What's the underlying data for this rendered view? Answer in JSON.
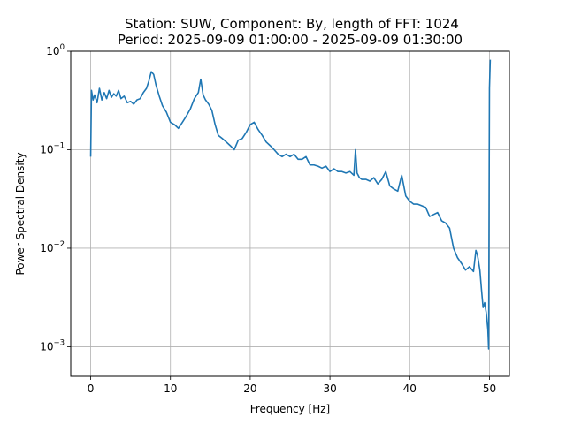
{
  "chart_data": {
    "type": "line",
    "title_line1": "Station: SUW, Component: By, length of FFT: 1024",
    "title_line2": "Period: 2025-09-09 01:00:00 - 2025-09-09 01:30:00",
    "xlabel": "Frequency [Hz]",
    "ylabel": "Power Spectral Density",
    "xlim": [
      -2.5,
      52.5
    ],
    "ylim": [
      0.0005,
      1
    ],
    "yscale": "log",
    "grid": true,
    "line_color": "#1f77b4",
    "x_ticks": [
      {
        "value": 0,
        "label": "0"
      },
      {
        "value": 10,
        "label": "10"
      },
      {
        "value": 20,
        "label": "20"
      },
      {
        "value": 30,
        "label": "30"
      },
      {
        "value": 40,
        "label": "40"
      },
      {
        "value": 50,
        "label": "50"
      }
    ],
    "y_ticks": [
      {
        "value": 0.001,
        "base": "10",
        "exp": "−3"
      },
      {
        "value": 0.01,
        "base": "10",
        "exp": "−2"
      },
      {
        "value": 0.1,
        "base": "10",
        "exp": "−1"
      },
      {
        "value": 1,
        "base": "10",
        "exp": "0"
      }
    ],
    "series": [
      {
        "x": [
          0,
          0.1,
          0.3,
          0.5,
          0.8,
          1.1,
          1.4,
          1.7,
          2.0,
          2.3,
          2.6,
          2.9,
          3.2,
          3.5,
          3.8,
          4.2,
          4.6,
          5.0,
          5.4,
          5.8,
          6.2,
          6.6,
          7.0,
          7.3,
          7.6,
          7.9,
          8.2,
          8.6,
          9.0,
          9.5,
          10.0,
          10.5,
          11.0,
          11.5,
          12.0,
          12.5,
          13.0,
          13.5,
          13.8,
          14.1,
          14.4,
          14.8,
          15.2,
          15.6,
          16.0,
          16.5,
          17.0,
          17.5,
          18.0,
          18.5,
          19.0,
          19.5,
          20.0,
          20.5,
          21.0,
          21.5,
          22.0,
          22.5,
          23.0,
          23.5,
          24.0,
          24.5,
          25.0,
          25.5,
          26.0,
          26.5,
          27.0,
          27.5,
          28.0,
          28.5,
          29.0,
          29.5,
          30.0,
          30.5,
          31.0,
          31.5,
          32.0,
          32.5,
          33.0,
          33.2,
          33.4,
          33.7,
          34.0,
          34.5,
          35.0,
          35.5,
          36.0,
          36.5,
          37.0,
          37.5,
          38.0,
          38.5,
          39.0,
          39.5,
          40.0,
          40.5,
          41.0,
          41.5,
          42.0,
          42.5,
          43.0,
          43.5,
          44.0,
          44.5,
          45.0,
          45.5,
          46.0,
          46.5,
          47.0,
          47.5,
          48.0,
          48.3,
          48.5,
          48.8,
          49.0,
          49.2,
          49.4,
          49.6,
          49.8,
          49.9,
          50.0,
          50.1
        ],
        "y": [
          0.085,
          0.4,
          0.32,
          0.36,
          0.3,
          0.42,
          0.32,
          0.38,
          0.33,
          0.4,
          0.34,
          0.37,
          0.35,
          0.4,
          0.33,
          0.35,
          0.3,
          0.31,
          0.29,
          0.32,
          0.33,
          0.38,
          0.42,
          0.5,
          0.62,
          0.58,
          0.45,
          0.35,
          0.28,
          0.24,
          0.19,
          0.18,
          0.165,
          0.19,
          0.22,
          0.26,
          0.33,
          0.38,
          0.52,
          0.36,
          0.32,
          0.29,
          0.25,
          0.18,
          0.14,
          0.13,
          0.12,
          0.11,
          0.1,
          0.125,
          0.13,
          0.15,
          0.18,
          0.19,
          0.16,
          0.14,
          0.12,
          0.11,
          0.1,
          0.09,
          0.085,
          0.09,
          0.085,
          0.09,
          0.08,
          0.08,
          0.085,
          0.07,
          0.07,
          0.068,
          0.065,
          0.068,
          0.06,
          0.064,
          0.06,
          0.06,
          0.058,
          0.06,
          0.055,
          0.1,
          0.058,
          0.052,
          0.05,
          0.05,
          0.048,
          0.052,
          0.045,
          0.05,
          0.06,
          0.043,
          0.04,
          0.038,
          0.055,
          0.034,
          0.03,
          0.028,
          0.028,
          0.027,
          0.026,
          0.021,
          0.022,
          0.023,
          0.019,
          0.018,
          0.016,
          0.01,
          0.008,
          0.007,
          0.006,
          0.0065,
          0.0058,
          0.0095,
          0.0085,
          0.006,
          0.0038,
          0.0025,
          0.0028,
          0.0022,
          0.0015,
          0.00095,
          0.42,
          0.82
        ]
      }
    ]
  }
}
